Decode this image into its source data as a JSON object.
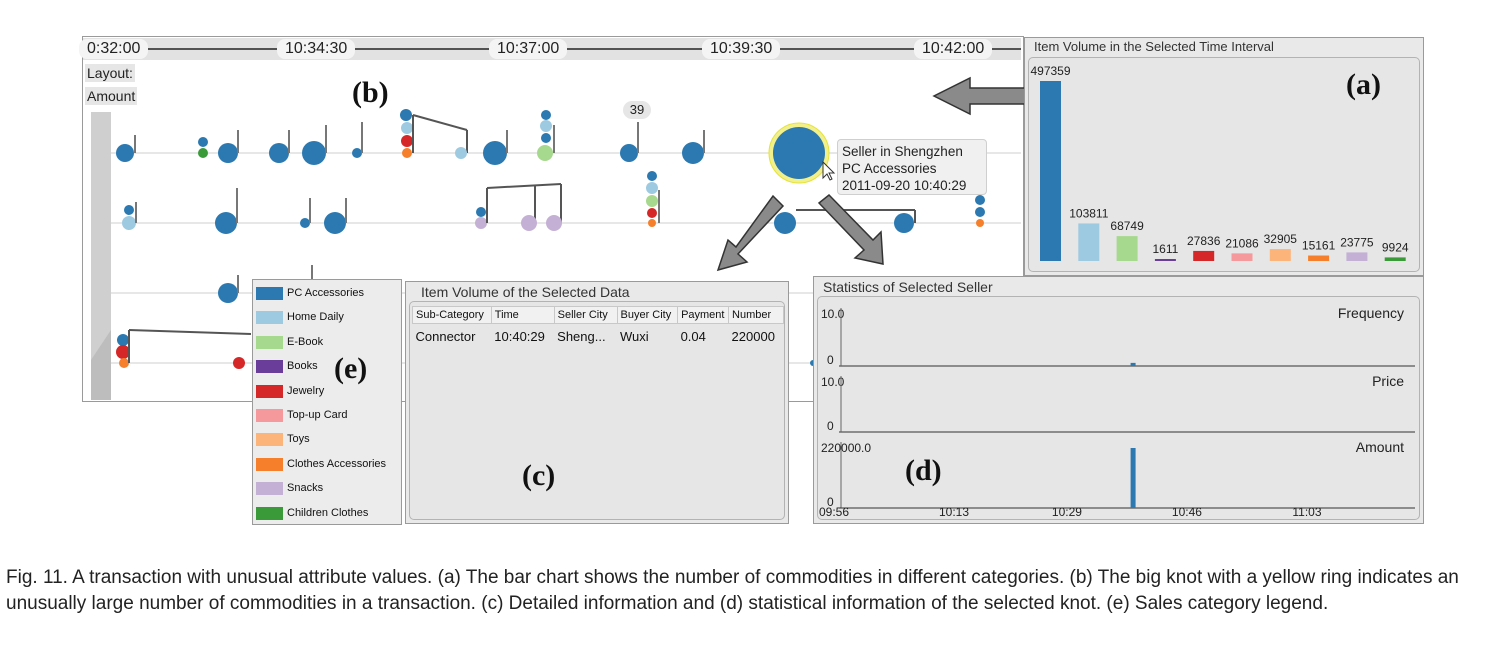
{
  "timeline": {
    "ticks": [
      "0:32:00",
      "10:34:30",
      "10:37:00",
      "10:39:30",
      "10:42:00"
    ],
    "layout_label": "Layout:",
    "amount_label": "Amount",
    "count_badge": "39",
    "label_b": "(b)",
    "tooltip": {
      "line1": "Seller in Shengzhen",
      "line2": "PC Accessories",
      "line3": "2011-09-20 10:40:29"
    }
  },
  "bar_panel": {
    "title": "Item Volume in the Selected Time Interval",
    "label": "(a)"
  },
  "chart_data": [
    {
      "type": "bar",
      "title": "Item Volume in the Selected Time Interval",
      "categories": [
        "PC Accessories",
        "Home Daily",
        "E-Book",
        "Books",
        "Jewelry",
        "Top-up Card",
        "Toys",
        "Clothes Accessories",
        "Snacks",
        "Children Clothes"
      ],
      "values": [
        497359,
        103811,
        68749,
        1611,
        27836,
        21086,
        32905,
        15161,
        23775,
        9924
      ],
      "value_labels": [
        "497359",
        "103811",
        "68749",
        "1611",
        "27836",
        "21086",
        "32905",
        "15161",
        "23775",
        "9924"
      ],
      "colors": [
        "#2b79b0",
        "#9ecae1",
        "#a6d88e",
        "#6a3d9a",
        "#d62728",
        "#f5999d",
        "#fdb47a",
        "#f57f2a",
        "#c5b0d5",
        "#3a9a3a"
      ]
    },
    {
      "type": "bar",
      "title": "Statistics of Selected Seller",
      "x_ticks": [
        "09:56",
        "10:13",
        "10:29",
        "10:46",
        "11:03"
      ],
      "panels": [
        {
          "name": "Frequency",
          "ytop": "10.0",
          "ybottom": "0",
          "x": [
            "10:40"
          ],
          "values": [
            0.6
          ]
        },
        {
          "name": "Price",
          "ytop": "10.0",
          "ybottom": "0",
          "x": [],
          "values": []
        },
        {
          "name": "Amount",
          "ytop": "220000.0",
          "ybottom": "0",
          "x": [
            "10:40"
          ],
          "values": [
            220000
          ]
        }
      ]
    }
  ],
  "legend": {
    "label": "(e)",
    "items": [
      {
        "label": "PC Accessories",
        "color": "#2b79b0"
      },
      {
        "label": "Home Daily",
        "color": "#9ecae1"
      },
      {
        "label": "E-Book",
        "color": "#a6d88e"
      },
      {
        "label": "Books",
        "color": "#6a3d9a"
      },
      {
        "label": "Jewelry",
        "color": "#d62728"
      },
      {
        "label": "Top-up Card",
        "color": "#f5999d"
      },
      {
        "label": "Toys",
        "color": "#fdb47a"
      },
      {
        "label": "Clothes Accessories",
        "color": "#f57f2a"
      },
      {
        "label": "Snacks",
        "color": "#c5b0d5"
      },
      {
        "label": "Children Clothes",
        "color": "#3a9a3a"
      }
    ]
  },
  "detail_panel": {
    "title": "Item Volume of the Selected Data",
    "label": "(c)",
    "columns": [
      "Sub-Category",
      "Time",
      "Seller City",
      "Buyer City",
      "Payment",
      "Number"
    ],
    "row": [
      "Connector",
      "10:40:29",
      "Sheng...",
      "Wuxi",
      "0.04",
      "220000"
    ]
  },
  "stats_panel": {
    "title": "Statistics of Selected Seller",
    "label": "(d)"
  },
  "caption": "Fig. 11.  A transaction with unusual attribute values. (a) The bar chart shows the number of commodities in different categories. (b) The big knot with a yellow ring indicates an unusually large number of commodities in a transaction. (c) Detailed information and (d) statistical information of the selected knot. (e) Sales category legend."
}
